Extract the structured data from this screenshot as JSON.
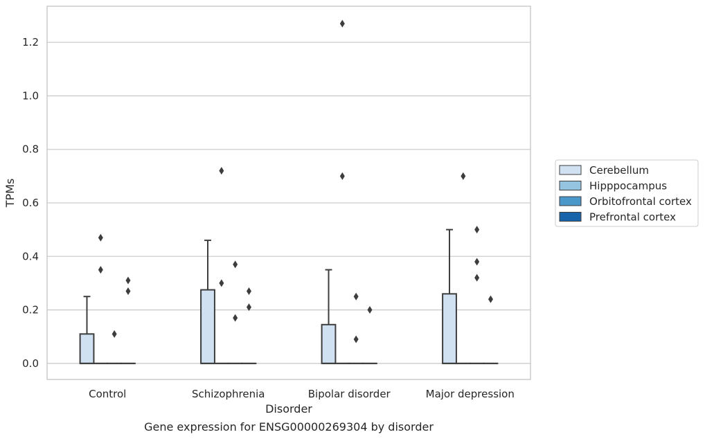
{
  "chart_data": {
    "type": "box",
    "caption": "Gene expression for ENSG00000269304 by disorder",
    "xlabel": "Disorder",
    "ylabel": "TPMs",
    "ylim": [
      -0.06,
      1.335
    ],
    "yticks": [
      "0.0",
      "0.2",
      "0.4",
      "0.6",
      "0.8",
      "1.0",
      "1.2"
    ],
    "grid": true,
    "legend_position": "right",
    "categories": [
      "Control",
      "Schizophrenia",
      "Bipolar disorder",
      "Major depression"
    ],
    "series": [
      {
        "name": "Cerebellum",
        "color": "#d0e1f2",
        "boxes": [
          {
            "q1": 0.0,
            "median": 0.0,
            "q3": 0.11,
            "whisker_low": 0.0,
            "whisker_high": 0.25,
            "outliers": []
          },
          {
            "q1": 0.0,
            "median": 0.0,
            "q3": 0.275,
            "whisker_low": 0.0,
            "whisker_high": 0.46,
            "outliers": []
          },
          {
            "q1": 0.0,
            "median": 0.0,
            "q3": 0.145,
            "whisker_low": 0.0,
            "whisker_high": 0.35,
            "outliers": []
          },
          {
            "q1": 0.0,
            "median": 0.0,
            "q3": 0.26,
            "whisker_low": 0.0,
            "whisker_high": 0.5,
            "outliers": []
          }
        ]
      },
      {
        "name": "Hipppocampus",
        "color": "#94c4df",
        "boxes": [
          {
            "q1": 0.0,
            "median": 0.0,
            "q3": 0.0,
            "whisker_low": 0.0,
            "whisker_high": 0.0,
            "outliers": [
              0.47,
              0.35
            ]
          },
          {
            "q1": 0.0,
            "median": 0.0,
            "q3": 0.0,
            "whisker_low": 0.0,
            "whisker_high": 0.0,
            "outliers": [
              0.72,
              0.3
            ]
          },
          {
            "q1": 0.0,
            "median": 0.0,
            "q3": 0.0,
            "whisker_low": 0.0,
            "whisker_high": 0.0,
            "outliers": [
              1.27,
              0.7
            ]
          },
          {
            "q1": 0.0,
            "median": 0.0,
            "q3": 0.0,
            "whisker_low": 0.0,
            "whisker_high": 0.0,
            "outliers": [
              0.7
            ]
          }
        ]
      },
      {
        "name": "Orbitofrontal cortex",
        "color": "#4a98c9",
        "boxes": [
          {
            "q1": 0.0,
            "median": 0.0,
            "q3": 0.0,
            "whisker_low": 0.0,
            "whisker_high": 0.0,
            "outliers": [
              0.11
            ]
          },
          {
            "q1": 0.0,
            "median": 0.0,
            "q3": 0.0,
            "whisker_low": 0.0,
            "whisker_high": 0.0,
            "outliers": [
              0.37,
              0.17
            ]
          },
          {
            "q1": 0.0,
            "median": 0.0,
            "q3": 0.0,
            "whisker_low": 0.0,
            "whisker_high": 0.0,
            "outliers": [
              0.25,
              0.09
            ]
          },
          {
            "q1": 0.0,
            "median": 0.0,
            "q3": 0.0,
            "whisker_low": 0.0,
            "whisker_high": 0.0,
            "outliers": [
              0.5,
              0.38,
              0.32
            ]
          }
        ]
      },
      {
        "name": "Prefrontal cortex",
        "color": "#1764ab",
        "boxes": [
          {
            "q1": 0.0,
            "median": 0.0,
            "q3": 0.0,
            "whisker_low": 0.0,
            "whisker_high": 0.0,
            "outliers": [
              0.31,
              0.27
            ]
          },
          {
            "q1": 0.0,
            "median": 0.0,
            "q3": 0.0,
            "whisker_low": 0.0,
            "whisker_high": 0.0,
            "outliers": [
              0.27,
              0.21
            ]
          },
          {
            "q1": 0.0,
            "median": 0.0,
            "q3": 0.0,
            "whisker_low": 0.0,
            "whisker_high": 0.0,
            "outliers": [
              0.2
            ]
          },
          {
            "q1": 0.0,
            "median": 0.0,
            "q3": 0.0,
            "whisker_low": 0.0,
            "whisker_high": 0.0,
            "outliers": [
              0.24
            ]
          }
        ]
      }
    ]
  }
}
